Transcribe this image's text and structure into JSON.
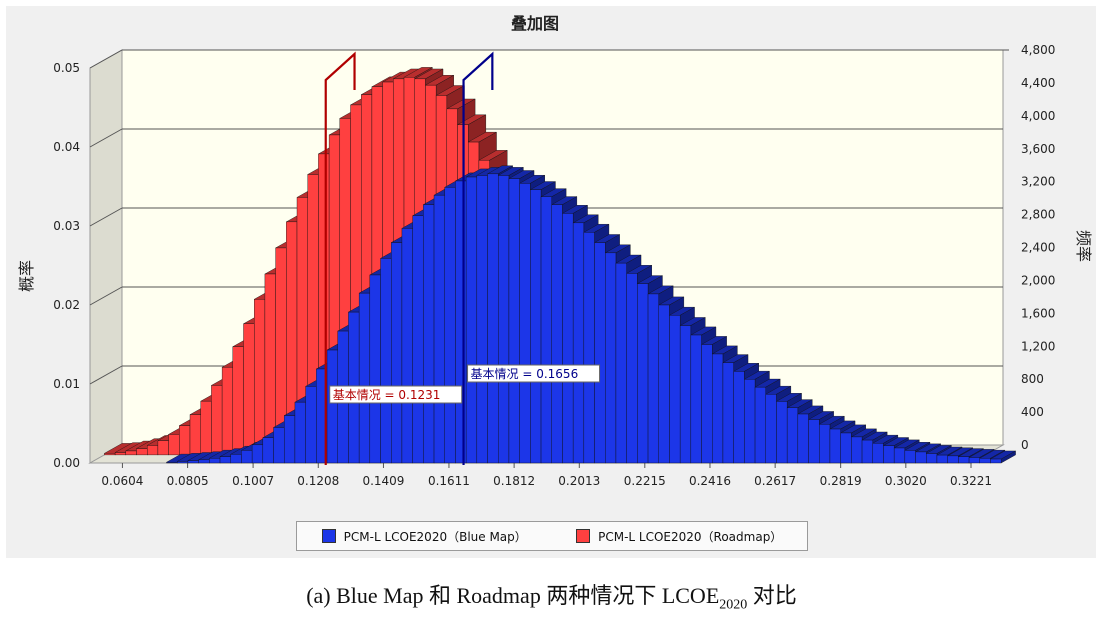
{
  "chart_data": {
    "type": "bar",
    "title": "叠加图",
    "ylabel_left": "概率",
    "ylabel_right": "频率",
    "x_ticks": [
      "0.0604",
      "0.0805",
      "0.1007",
      "0.1208",
      "0.1409",
      "0.1611",
      "0.1812",
      "0.2013",
      "0.2215",
      "0.2416",
      "0.2617",
      "0.2819",
      "0.3020",
      "0.3221"
    ],
    "x_range": [
      0.0504,
      0.3221
    ],
    "y_left_ticks": [
      "0.00",
      "0.01",
      "0.02",
      "0.03",
      "0.04",
      "0.05"
    ],
    "y_left_range": [
      0,
      0.05
    ],
    "y_right_ticks": [
      "0",
      "400",
      "800",
      "1,200",
      "1,600",
      "2,000",
      "2,400",
      "2,800",
      "3,200",
      "3,600",
      "4,000",
      "4,400",
      "4,800"
    ],
    "y_right_range": [
      0,
      4800
    ],
    "grid": true,
    "legend_position": "bottom",
    "series": [
      {
        "name": "PCM-L  LCOE2020（Roadmap）",
        "color": "#ff4040",
        "x_start": 0.0504,
        "bin_width": 0.0033,
        "values": [
          0.0002,
          0.0003,
          0.0005,
          0.0008,
          0.0012,
          0.0018,
          0.0026,
          0.0037,
          0.0051,
          0.0068,
          0.0088,
          0.0111,
          0.0137,
          0.0166,
          0.0197,
          0.0229,
          0.0262,
          0.0295,
          0.0326,
          0.0355,
          0.0381,
          0.0405,
          0.0426,
          0.0443,
          0.0456,
          0.0466,
          0.0472,
          0.0476,
          0.0478,
          0.0476,
          0.0468,
          0.0455,
          0.0438,
          0.0418,
          0.0396,
          0.0373,
          0.0351,
          0.0331,
          0.0314,
          0.03
        ]
      },
      {
        "name": "PCM-L  LCOE2020（Blue Map）",
        "color": "#1c36e8",
        "x_start": 0.074,
        "bin_width": 0.0033,
        "values": [
          0.0001,
          0.0002,
          0.0003,
          0.0004,
          0.0006,
          0.0008,
          0.0011,
          0.0016,
          0.0023,
          0.0032,
          0.0045,
          0.006,
          0.0077,
          0.0097,
          0.0119,
          0.0143,
          0.0167,
          0.0191,
          0.0215,
          0.0238,
          0.0259,
          0.0279,
          0.0297,
          0.0313,
          0.0327,
          0.0339,
          0.0349,
          0.0357,
          0.0362,
          0.0364,
          0.0366,
          0.0364,
          0.036,
          0.0354,
          0.0346,
          0.0337,
          0.0327,
          0.0316,
          0.0304,
          0.0292,
          0.0279,
          0.0266,
          0.0253,
          0.024,
          0.0227,
          0.0214,
          0.02,
          0.0187,
          0.0174,
          0.0162,
          0.015,
          0.0138,
          0.0127,
          0.0116,
          0.0106,
          0.0096,
          0.0087,
          0.0078,
          0.007,
          0.0062,
          0.0055,
          0.0049,
          0.0043,
          0.0038,
          0.0033,
          0.0029,
          0.0025,
          0.0022,
          0.0019,
          0.0016,
          0.0014,
          0.0012,
          0.001,
          0.0009,
          0.0008,
          0.0007,
          0.0006,
          0.0005
        ]
      }
    ],
    "markers": [
      {
        "label": "基本情况 = 0.1231",
        "x": 0.1231,
        "color": "#b00000"
      },
      {
        "label": "基本情况 = 0.1656",
        "x": 0.1656,
        "color": "#00008b"
      }
    ]
  },
  "legend": {
    "blue_label": "PCM-L  LCOE2020（Blue Map）",
    "red_label": "PCM-L  LCOE2020（Roadmap）"
  },
  "caption": {
    "main": "(a) Blue Map 和 Roadmap 两种情况下 LCOE",
    "sub": "2020",
    "tail": " 对比"
  }
}
